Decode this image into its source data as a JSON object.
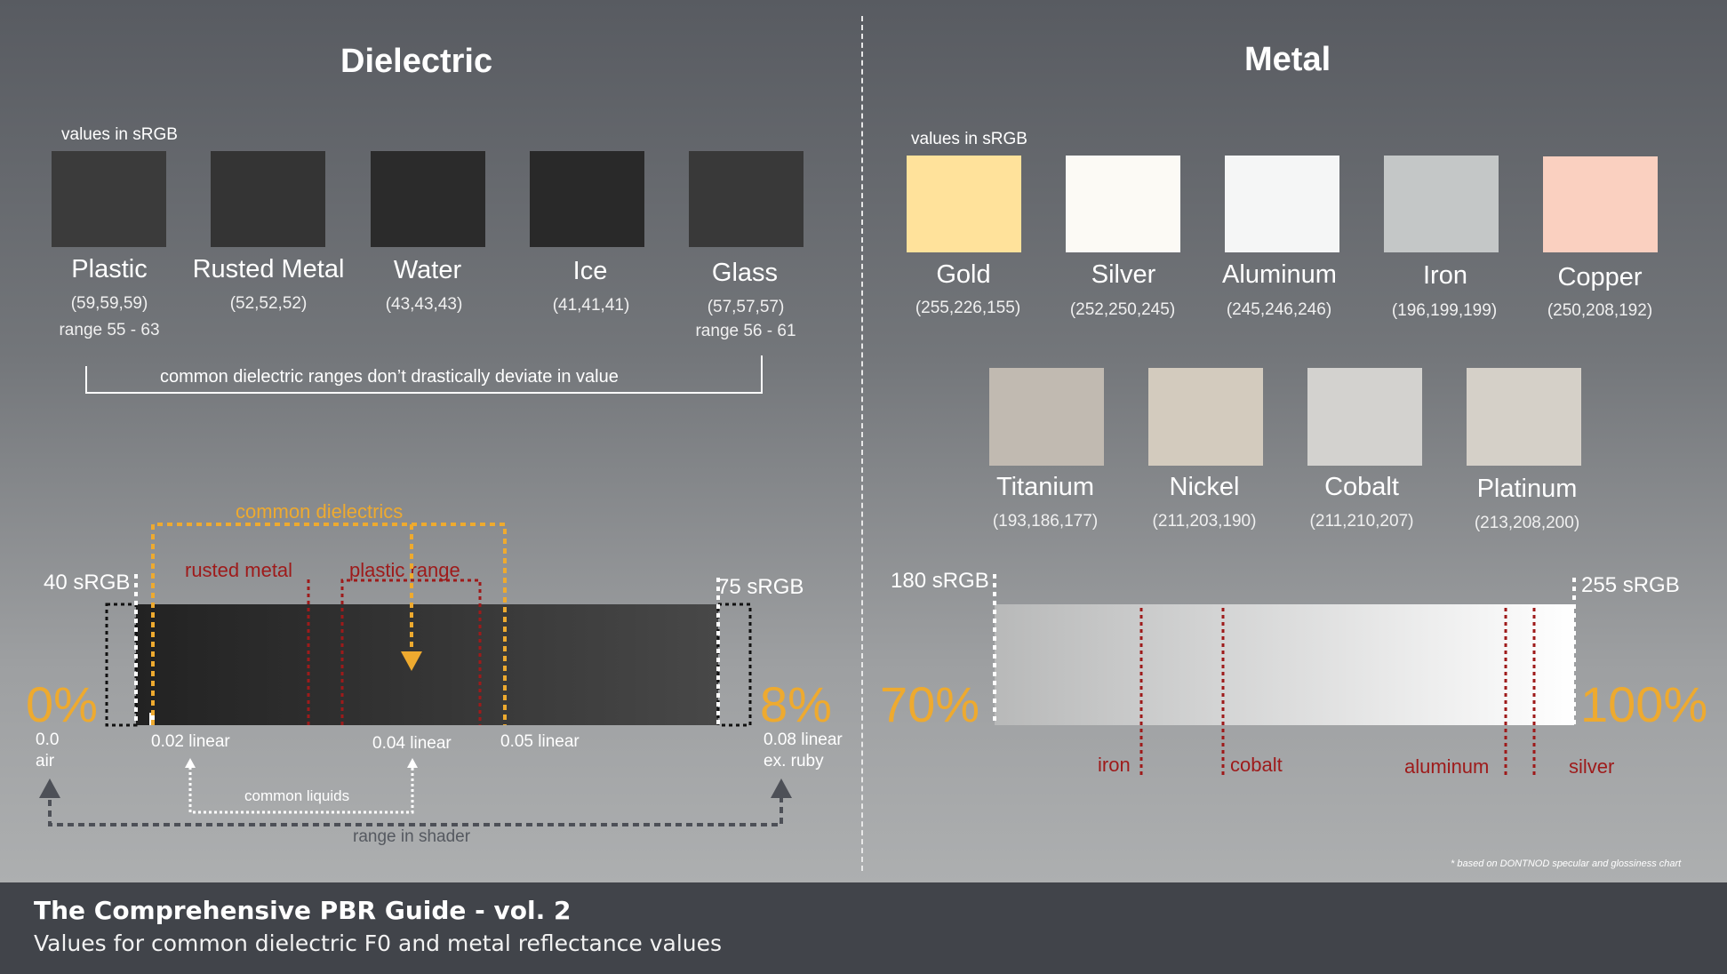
{
  "dielectric": {
    "title": "Dielectric",
    "values_note": "values in sRGB",
    "materials": [
      {
        "name": "Plastic",
        "rgb": "(59,59,59)",
        "range": "range 55 - 63",
        "color": "#3b3b3b"
      },
      {
        "name": "Rusted Metal",
        "rgb": "(52,52,52)",
        "range": "",
        "color": "#343434"
      },
      {
        "name": "Water",
        "rgb": "(43,43,43)",
        "range": "",
        "color": "#2b2b2b"
      },
      {
        "name": "Ice",
        "rgb": "(41,41,41)",
        "range": "",
        "color": "#292929"
      },
      {
        "name": "Glass",
        "rgb": "(57,57,57)",
        "range": "range 56 - 61",
        "color": "#393939"
      }
    ],
    "bracket_note": "common dielectric ranges don’t drastically deviate in value",
    "scale": {
      "left_srgb": "40 sRGB",
      "right_srgb": "75 sRGB",
      "percent_0": "0%",
      "percent_2": "2%",
      "percent_4": "4%",
      "percent_5": "5%",
      "percent_8": "8%",
      "lin_0": "0.0",
      "lin_0_sub": "air",
      "lin_2": "0.02 linear",
      "lin_4": "0.04 linear",
      "lin_5": "0.05 linear",
      "lin_8": "0.08 linear",
      "lin_8_sub": "ex. ruby",
      "common_dielectrics": "common dielectrics",
      "rusted_metal": "rusted metal",
      "plastic_range": "plastic range",
      "common_liquids": "common liquids",
      "range_in_shader": "range in shader"
    }
  },
  "metal": {
    "title": "Metal",
    "values_note": "values in sRGB",
    "materials": [
      {
        "name": "Gold",
        "rgb": "(255,226,155)",
        "color": "#ffe29b"
      },
      {
        "name": "Silver",
        "rgb": "(252,250,245)",
        "color": "#fcfaf5"
      },
      {
        "name": "Aluminum",
        "rgb": "(245,246,246)",
        "color": "#f5f6f6"
      },
      {
        "name": "Iron",
        "rgb": "(196,199,199)",
        "color": "#c4c7c7"
      },
      {
        "name": "Copper",
        "rgb": "(250,208,192)",
        "color": "#fad0c0"
      },
      {
        "name": "Titanium",
        "rgb": "(193,186,177)",
        "color": "#c1bab1"
      },
      {
        "name": "Nickel",
        "rgb": "(211,203,190)",
        "color": "#d3cbbe"
      },
      {
        "name": "Cobalt",
        "rgb": "(211,210,207)",
        "color": "#d3d2cf"
      },
      {
        "name": "Platinum",
        "rgb": "(213,208,200)",
        "color": "#d5d0c8"
      }
    ],
    "scale": {
      "left_srgb": "180 sRGB",
      "right_srgb": "255 sRGB",
      "percent_70": "70%",
      "percent_100": "100%",
      "iron": "iron",
      "cobalt": "cobalt",
      "aluminum": "aluminum",
      "silver": "silver"
    },
    "footnote": "* based on DONTNOD specular and glossiness chart"
  },
  "footer": {
    "title": "The Comprehensive PBR Guide - vol. 2",
    "subtitle": "Values for common dielectric F0 and metal reflectance values"
  }
}
